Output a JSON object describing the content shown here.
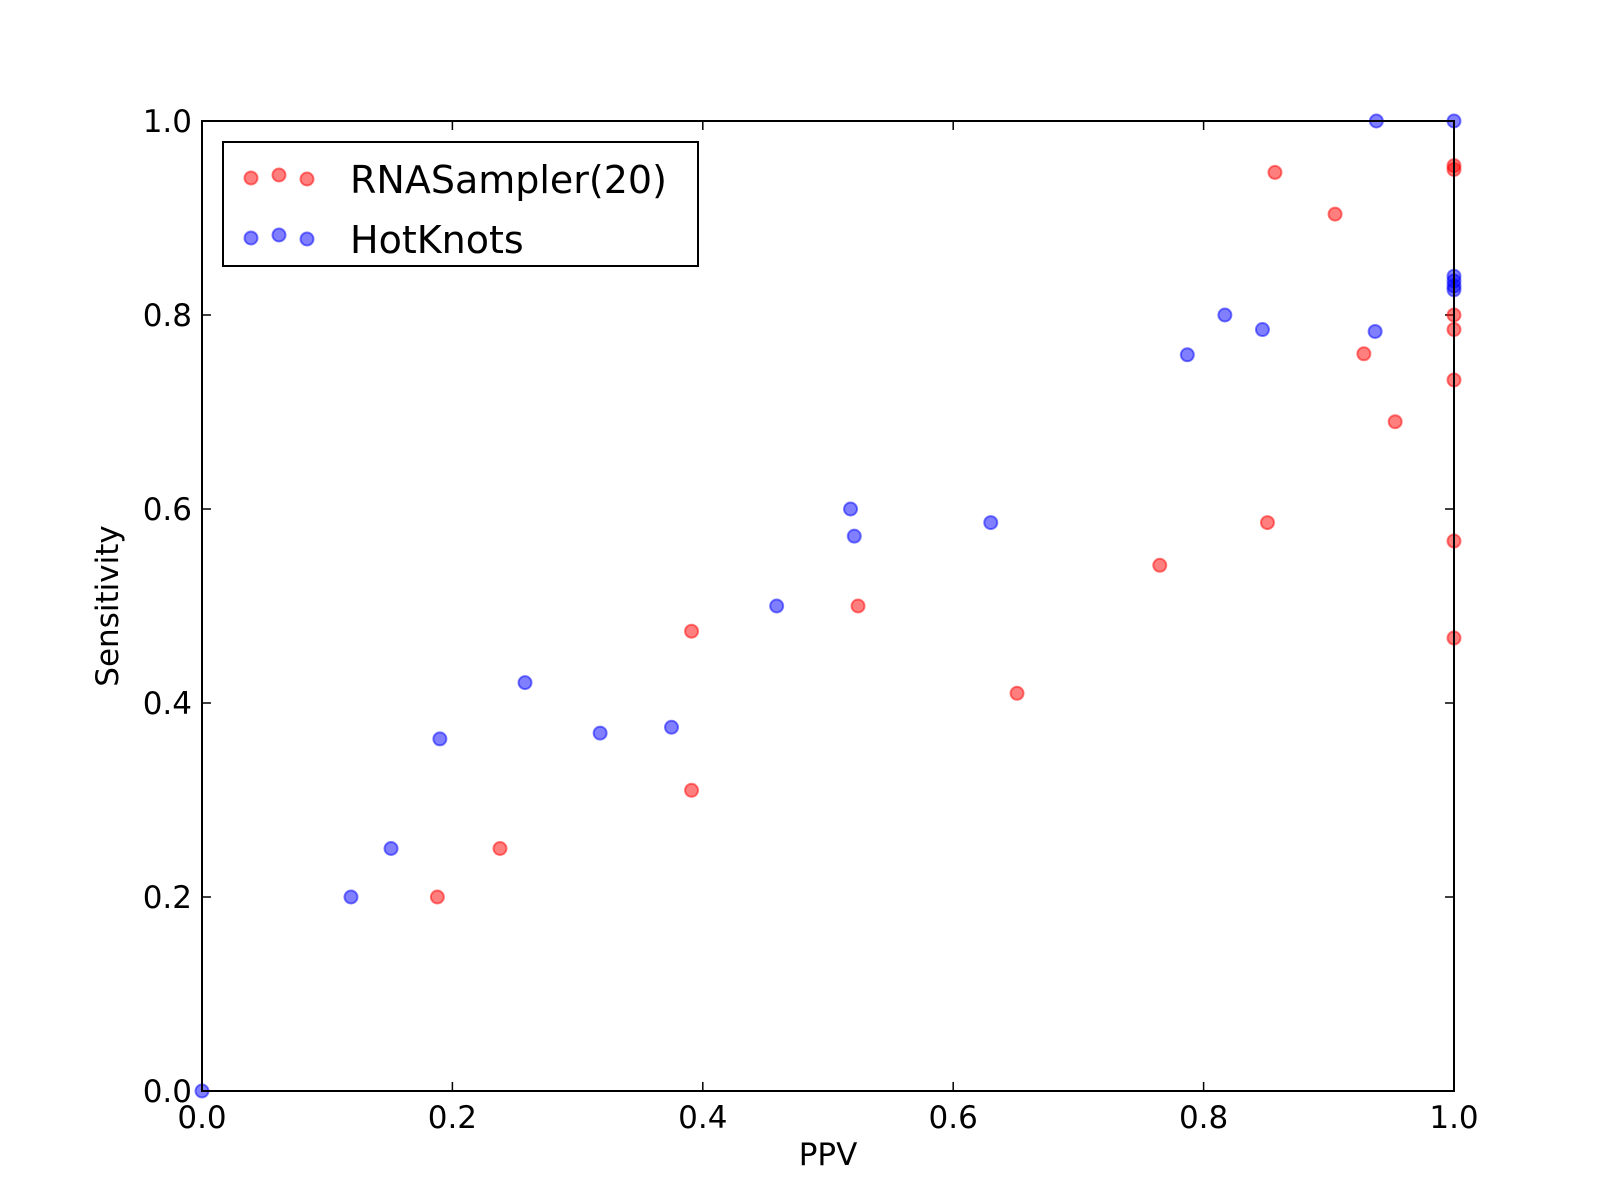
{
  "chart_data": {
    "type": "scatter",
    "xlabel": "PPV",
    "ylabel": "Sensitivity",
    "xlim": [
      0,
      1
    ],
    "ylim": [
      0,
      1
    ],
    "xticks": [
      {
        "value": 0,
        "label": "0.0"
      },
      0.2,
      0.4,
      0.6,
      0.8,
      {
        "value": 1,
        "label": "1.0"
      }
    ],
    "yticks": [
      {
        "value": 0,
        "label": "0.0"
      },
      0.2,
      0.4,
      0.6,
      0.8,
      {
        "value": 1,
        "label": "1.0"
      }
    ],
    "legend": "upper left",
    "series": [
      {
        "name": "RNASampler(20)",
        "color": "#ff0000",
        "x": [
          0.188,
          0.238,
          0.391,
          0.391,
          0.524,
          0.651,
          0.765,
          0.851,
          0.857,
          0.905,
          0.928,
          0.953,
          1.0,
          1.0,
          1.0,
          1.0,
          1.0,
          1.0,
          1.0
        ],
        "y": [
          0.2,
          0.25,
          0.31,
          0.474,
          0.5,
          0.41,
          0.542,
          0.586,
          0.947,
          0.904,
          0.76,
          0.69,
          0.954,
          0.95,
          0.8,
          0.785,
          0.733,
          0.567,
          0.467
        ]
      },
      {
        "name": "HotKnots",
        "color": "#0000ff",
        "x": [
          0.0,
          0.119,
          0.151,
          0.19,
          0.258,
          0.318,
          0.375,
          0.459,
          0.518,
          0.521,
          0.63,
          0.787,
          0.817,
          0.847,
          0.937,
          0.938,
          1.0,
          1.0,
          1.0,
          1.0,
          1.0
        ],
        "y": [
          0.0,
          0.2,
          0.25,
          0.363,
          0.421,
          0.369,
          0.375,
          0.5,
          0.6,
          0.572,
          0.586,
          0.759,
          0.8,
          0.785,
          0.783,
          1.0,
          1.0,
          0.84,
          0.835,
          0.83,
          0.826
        ]
      }
    ]
  }
}
